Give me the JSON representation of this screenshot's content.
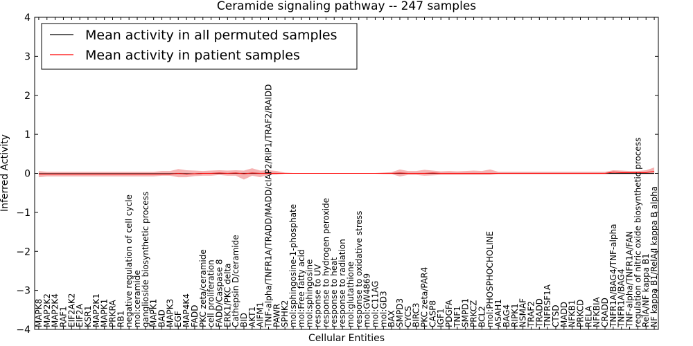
{
  "chart_data": {
    "type": "line",
    "title": "Ceramide signaling pathway -- 247 samples",
    "xlabel": "Cellular Entities",
    "ylabel": "Inferred Activity",
    "ylim": [
      -4,
      4
    ],
    "yticks": [
      "−4",
      "−3",
      "−2",
      "−1",
      "0",
      "1",
      "2",
      "3",
      "4"
    ],
    "grid": false,
    "legend_position": "top-left",
    "categories": [
      "MAPK8",
      "MAP2K2",
      "MAP2K4",
      "RAF1",
      "EIF2AK2",
      "EIF2A",
      "KSR1",
      "MAP2K1",
      "MAPK1",
      "PRKRA",
      "RB1",
      "negative regulation of cell cycle",
      "mol:ceramide",
      "ganglioside biosynthetic process",
      "MAPK1",
      "BAD",
      "MAPK3",
      "EGF",
      "MAP4K4",
      "FADD",
      "PKC zeta/ceramide",
      "cell proliferation",
      "FADD/Caspase 8",
      "ERK1/PKC delta",
      "Cathepsin D/ceramide",
      "BID",
      "AKT1",
      "AIFM1",
      "TNF-alpha/TNFR1A/TRADD/MADD/cIAP2/RIP1/TRAF2/RAIDD",
      "PAWR",
      "SPHK2",
      "mol:sphingosine-1-phosphate",
      "mol:Free fatty acid",
      "mol:sphingosine",
      "response to UV",
      "response to hydrogen peroxide",
      "response to heat",
      "response to radiation",
      "mol:glutathione",
      "response to oxidative stress",
      "mol:GW4869",
      "mol:C11AG",
      "mol:GD3",
      "BAX",
      "SMPD3",
      "CYCS",
      "BIRC3",
      "PKC zeta/PAR4",
      "CASP8",
      "IGF1",
      "PDGFA",
      "TNF1",
      "SMPD1",
      "PRKCZ",
      "BCL2",
      "mol:PHOSPHOCHOLINE",
      "ASAH1",
      "BAG4",
      "RIPK1",
      "NSMAF",
      "TRAF2",
      "TRADD",
      "TNFRSF1A",
      "CTSD",
      "MADD",
      "NFKB1",
      "PRKCD",
      "RELA",
      "NFKBIA",
      "CRADD",
      "TNFR1A/BAG4/TNF-alpha",
      "TNFR1A/BAG4",
      "TNF-alpha/TNFR1A/FAN",
      "regulation of nitric oxide biosynthetic process",
      "RelA/NF kappa B1",
      "NF kappa B1/RelA/I kappa B alpha"
    ],
    "series": [
      {
        "name": "Mean activity in all permuted samples",
        "color": "#000000",
        "values": [
          -0.01,
          -0.01,
          -0.01,
          -0.01,
          -0.01,
          -0.01,
          -0.01,
          -0.01,
          -0.01,
          -0.01,
          -0.01,
          -0.01,
          -0.01,
          -0.01,
          -0.01,
          -0.01,
          -0.01,
          0.0,
          -0.01,
          -0.01,
          0.0,
          0.0,
          0.0,
          0.0,
          0.0,
          0.0,
          0.0,
          0.0,
          0.0,
          0.0,
          0.0,
          0.0,
          0.0,
          0.0,
          0.0,
          0.0,
          0.0,
          0.0,
          0.0,
          0.0,
          0.0,
          0.0,
          0.0,
          0.0,
          0.0,
          0.0,
          0.0,
          0.0,
          0.0,
          0.0,
          0.0,
          0.0,
          0.0,
          0.0,
          0.0,
          0.0,
          0.0,
          0.0,
          0.0,
          0.0,
          0.0,
          0.0,
          0.0,
          0.0,
          0.0,
          0.0,
          0.0,
          0.0,
          0.0,
          0.0,
          0.0,
          0.0,
          0.0,
          0.0,
          0.0,
          0.0
        ],
        "band": {
          "color": "#c8c8c8",
          "lower": [
            -0.02,
            -0.02,
            -0.02,
            -0.02,
            -0.02,
            -0.02,
            -0.02,
            -0.02,
            -0.02,
            -0.02,
            -0.02,
            -0.02,
            -0.02,
            -0.02,
            -0.02,
            -0.02,
            -0.02,
            -0.03,
            -0.02,
            -0.02,
            -0.02,
            -0.02,
            -0.02,
            -0.02,
            -0.02,
            -0.03,
            -0.04,
            -0.03,
            -0.04,
            -0.02,
            -0.01,
            -0.01,
            -0.01,
            -0.01,
            -0.01,
            -0.01,
            -0.01,
            -0.01,
            -0.01,
            -0.01,
            -0.01,
            -0.01,
            -0.01,
            -0.02,
            -0.03,
            -0.02,
            -0.02,
            -0.02,
            -0.02,
            -0.02,
            -0.02,
            -0.02,
            -0.02,
            -0.02,
            -0.02,
            -0.02,
            -0.02,
            -0.02,
            -0.02,
            -0.02,
            -0.02,
            -0.02,
            -0.02,
            -0.02,
            -0.02,
            -0.02,
            -0.02,
            -0.02,
            -0.02,
            -0.02,
            -0.02,
            -0.02,
            -0.02,
            -0.02,
            -0.02,
            -0.02
          ],
          "upper": [
            0.01,
            0.01,
            0.01,
            0.01,
            0.01,
            0.01,
            0.01,
            0.01,
            0.01,
            0.01,
            0.01,
            0.01,
            0.01,
            0.01,
            0.01,
            0.01,
            0.01,
            0.02,
            0.01,
            0.01,
            0.02,
            0.02,
            0.02,
            0.02,
            0.02,
            0.03,
            0.04,
            0.03,
            0.04,
            0.02,
            0.01,
            0.01,
            0.01,
            0.01,
            0.01,
            0.01,
            0.01,
            0.01,
            0.01,
            0.01,
            0.01,
            0.01,
            0.01,
            0.02,
            0.03,
            0.02,
            0.02,
            0.02,
            0.02,
            0.02,
            0.02,
            0.02,
            0.02,
            0.02,
            0.02,
            0.02,
            0.02,
            0.02,
            0.02,
            0.02,
            0.02,
            0.02,
            0.02,
            0.02,
            0.02,
            0.02,
            0.02,
            0.02,
            0.02,
            0.02,
            0.02,
            0.02,
            0.02,
            0.02,
            0.02,
            0.02
          ]
        }
      },
      {
        "name": "Mean activity in patient samples",
        "color": "#ff0000",
        "values": [
          -0.02,
          -0.02,
          -0.02,
          -0.02,
          -0.02,
          -0.02,
          -0.02,
          -0.02,
          -0.02,
          -0.02,
          -0.02,
          -0.02,
          -0.02,
          -0.02,
          -0.02,
          -0.02,
          -0.02,
          0.0,
          -0.02,
          -0.01,
          0.0,
          0.0,
          0.01,
          0.0,
          0.01,
          -0.01,
          0.01,
          0.0,
          0.0,
          0.0,
          0.0,
          0.0,
          0.0,
          0.0,
          0.0,
          0.0,
          0.0,
          0.0,
          0.0,
          0.0,
          0.0,
          0.0,
          0.0,
          0.0,
          0.01,
          0.0,
          0.0,
          0.0,
          0.01,
          0.0,
          0.0,
          0.0,
          0.0,
          0.0,
          0.0,
          0.0,
          0.0,
          0.0,
          0.0,
          0.0,
          0.0,
          0.0,
          0.0,
          0.0,
          0.0,
          0.0,
          0.0,
          0.0,
          0.0,
          0.0,
          0.03,
          0.02,
          0.02,
          0.02,
          0.02,
          0.05
        ],
        "band": {
          "color": "#f08080",
          "lower": [
            -0.1,
            -0.08,
            -0.08,
            -0.08,
            -0.08,
            -0.08,
            -0.08,
            -0.08,
            -0.08,
            -0.08,
            -0.08,
            -0.08,
            -0.08,
            -0.08,
            -0.08,
            -0.06,
            -0.06,
            -0.1,
            -0.1,
            -0.07,
            -0.06,
            -0.06,
            -0.04,
            -0.06,
            -0.06,
            -0.16,
            -0.06,
            -0.1,
            -0.03,
            -0.03,
            -0.01,
            -0.01,
            -0.01,
            -0.01,
            -0.01,
            -0.01,
            -0.01,
            -0.01,
            -0.01,
            -0.01,
            -0.01,
            -0.01,
            -0.02,
            -0.02,
            -0.08,
            -0.04,
            -0.04,
            -0.06,
            -0.05,
            -0.04,
            -0.04,
            -0.04,
            -0.04,
            -0.04,
            -0.04,
            -0.04,
            -0.02,
            -0.02,
            -0.02,
            -0.02,
            -0.02,
            -0.02,
            -0.02,
            -0.02,
            -0.02,
            -0.02,
            -0.02,
            -0.02,
            -0.02,
            -0.02,
            -0.02,
            -0.02,
            -0.02,
            -0.02,
            -0.02,
            -0.02
          ],
          "upper": [
            0.06,
            0.04,
            0.04,
            0.04,
            0.04,
            0.04,
            0.04,
            0.04,
            0.04,
            0.04,
            0.04,
            0.04,
            0.04,
            0.04,
            0.04,
            0.06,
            0.06,
            0.11,
            0.08,
            0.07,
            0.06,
            0.07,
            0.08,
            0.07,
            0.08,
            0.07,
            0.13,
            0.07,
            0.08,
            0.06,
            0.02,
            0.01,
            0.01,
            0.01,
            0.01,
            0.01,
            0.01,
            0.01,
            0.01,
            0.01,
            0.01,
            0.01,
            0.02,
            0.03,
            0.1,
            0.06,
            0.06,
            0.09,
            0.07,
            0.05,
            0.06,
            0.05,
            0.06,
            0.07,
            0.06,
            0.1,
            0.04,
            0.04,
            0.04,
            0.04,
            0.04,
            0.04,
            0.04,
            0.04,
            0.04,
            0.04,
            0.04,
            0.04,
            0.04,
            0.04,
            0.08,
            0.07,
            0.06,
            0.06,
            0.08,
            0.15
          ]
        }
      }
    ]
  }
}
